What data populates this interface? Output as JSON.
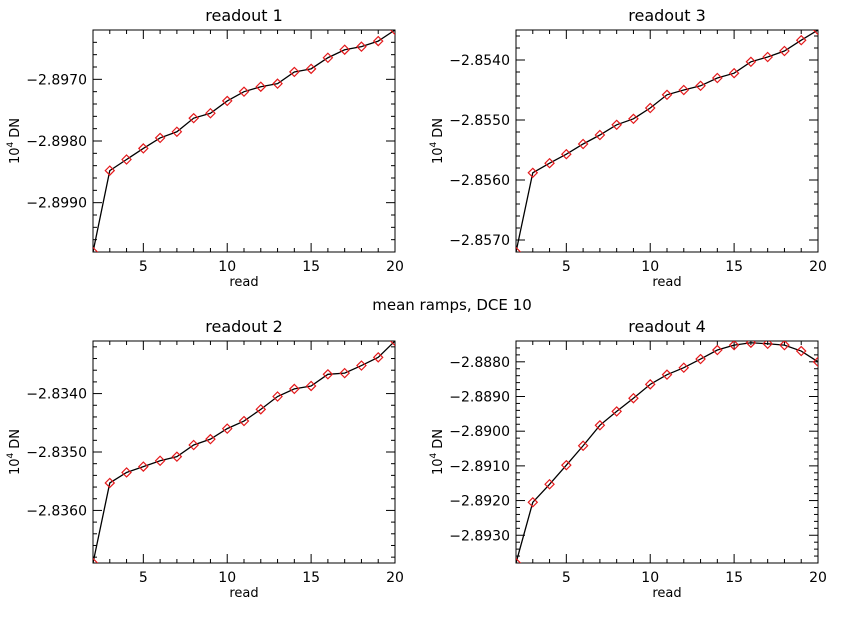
{
  "figure": {
    "suptitle": "mean ramps, DCE 10"
  },
  "chart_data": [
    {
      "type": "line",
      "title": "readout 1",
      "xlabel": "read",
      "ylabel_prefix": "10",
      "ylabel_exp": "4",
      "ylabel_unit": "DN",
      "xlim": [
        2,
        20
      ],
      "ylim": [
        -2.8998,
        -2.8962
      ],
      "xticks": [
        5,
        10,
        15,
        20
      ],
      "yticks": [
        -2.899,
        -2.898,
        -2.897
      ],
      "ytick_labels": [
        "−2.8990",
        "−2.8980",
        "−2.8970"
      ],
      "x": [
        2,
        3,
        4,
        5,
        6,
        7,
        8,
        9,
        10,
        11,
        12,
        13,
        14,
        15,
        16,
        17,
        18,
        19,
        20
      ],
      "values": [
        -2.8998,
        -2.89848,
        -2.8983,
        -2.89812,
        -2.89795,
        -2.89785,
        -2.89763,
        -2.89755,
        -2.89735,
        -2.8972,
        -2.89712,
        -2.89707,
        -2.89688,
        -2.89683,
        -2.89665,
        -2.89652,
        -2.89647,
        -2.89638,
        -2.8962
      ]
    },
    {
      "type": "line",
      "title": "readout 3",
      "xlabel": "read",
      "ylabel_prefix": "10",
      "ylabel_exp": "4",
      "ylabel_unit": "DN",
      "xlim": [
        2,
        20
      ],
      "ylim": [
        -2.8572,
        -2.8535
      ],
      "xticks": [
        5,
        10,
        15,
        20
      ],
      "yticks": [
        -2.857,
        -2.856,
        -2.855,
        -2.854
      ],
      "ytick_labels": [
        "−2.8570",
        "−2.8560",
        "−2.8550",
        "−2.8540"
      ],
      "x": [
        2,
        3,
        4,
        5,
        6,
        7,
        8,
        9,
        10,
        11,
        12,
        13,
        14,
        15,
        16,
        17,
        18,
        19,
        20
      ],
      "values": [
        -2.8572,
        -2.85588,
        -2.85572,
        -2.85557,
        -2.8554,
        -2.85525,
        -2.85508,
        -2.85498,
        -2.8548,
        -2.85458,
        -2.8545,
        -2.85443,
        -2.8543,
        -2.85422,
        -2.85403,
        -2.85395,
        -2.85385,
        -2.85367,
        -2.8535
      ]
    },
    {
      "type": "line",
      "title": "readout 2",
      "xlabel": "read",
      "ylabel_prefix": "10",
      "ylabel_exp": "4",
      "ylabel_unit": "DN",
      "xlim": [
        2,
        20
      ],
      "ylim": [
        -2.8369,
        -2.8331
      ],
      "xticks": [
        5,
        10,
        15,
        20
      ],
      "yticks": [
        -2.836,
        -2.835,
        -2.834
      ],
      "ytick_labels": [
        "−2.8360",
        "−2.8350",
        "−2.8340"
      ],
      "x": [
        2,
        3,
        4,
        5,
        6,
        7,
        8,
        9,
        10,
        11,
        12,
        13,
        14,
        15,
        16,
        17,
        18,
        19,
        20
      ],
      "values": [
        -2.8369,
        -2.83553,
        -2.83535,
        -2.83525,
        -2.83515,
        -2.83508,
        -2.83488,
        -2.83478,
        -2.8346,
        -2.83447,
        -2.83427,
        -2.83405,
        -2.83392,
        -2.83387,
        -2.83367,
        -2.83365,
        -2.83352,
        -2.83338,
        -2.8331
      ]
    },
    {
      "type": "line",
      "title": "readout 4",
      "xlabel": "read",
      "ylabel_prefix": "10",
      "ylabel_exp": "4",
      "ylabel_unit": "DN",
      "xlim": [
        2,
        20
      ],
      "ylim": [
        -2.8938,
        -2.8874
      ],
      "xticks": [
        5,
        10,
        15,
        20
      ],
      "yticks": [
        -2.893,
        -2.892,
        -2.891,
        -2.89,
        -2.889,
        -2.888
      ],
      "ytick_labels": [
        "−2.8930",
        "−2.8920",
        "−2.8910",
        "−2.8900",
        "−2.8890",
        "−2.8880"
      ],
      "x": [
        2,
        3,
        4,
        5,
        6,
        7,
        8,
        9,
        10,
        11,
        12,
        13,
        14,
        15,
        16,
        17,
        18,
        19,
        20
      ],
      "values": [
        -2.8938,
        -2.89205,
        -2.89153,
        -2.89098,
        -2.89042,
        -2.88983,
        -2.88943,
        -2.88905,
        -2.88865,
        -2.88837,
        -2.88817,
        -2.88792,
        -2.88766,
        -2.88752,
        -2.88745,
        -2.88748,
        -2.88752,
        -2.88769,
        -2.888
      ]
    }
  ]
}
